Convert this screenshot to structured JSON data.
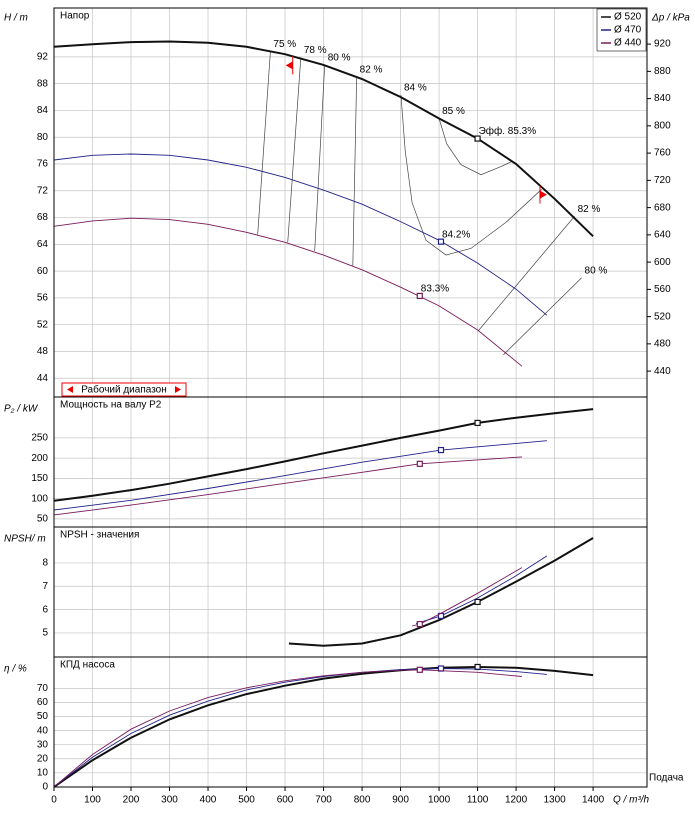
{
  "chart_data": [
    {
      "type": "line",
      "title": "Напор",
      "y_label": "H / m",
      "y2_label": "Δp / kPa",
      "grid": true,
      "xlim": [
        0,
        1540
      ],
      "ylim": [
        41.2,
        99.3
      ],
      "yticks": [
        44,
        48,
        52,
        56,
        60,
        64,
        68,
        72,
        76,
        80,
        84,
        88,
        92
      ],
      "y2lim": [
        402,
        973
      ],
      "y2ticks": [
        440,
        480,
        520,
        560,
        600,
        640,
        680,
        720,
        760,
        800,
        840,
        880,
        920
      ],
      "legend": "upper right",
      "series": [
        {
          "name": "Ø 520",
          "color": "#111111",
          "x": [
            0,
            100,
            200,
            300,
            400,
            500,
            600,
            700,
            800,
            900,
            1000,
            1100,
            1200,
            1300,
            1400
          ],
          "values": [
            93.5,
            93.9,
            94.2,
            94.3,
            94.1,
            93.5,
            92.4,
            90.8,
            88.7,
            86.0,
            82.8,
            79.8,
            76.0,
            70.8,
            65.2
          ],
          "point": {
            "x": 1100,
            "value": 79.8,
            "label": "Эфф. 85.3%"
          }
        },
        {
          "name": "Ø 470",
          "color": "#22228a",
          "x": [
            0,
            100,
            200,
            300,
            400,
            500,
            600,
            700,
            800,
            900,
            1000,
            1100,
            1200,
            1280
          ],
          "values": [
            76.6,
            77.3,
            77.5,
            77.3,
            76.6,
            75.5,
            74.0,
            72.1,
            70.0,
            67.4,
            64.6,
            61.2,
            57.3,
            53.4
          ],
          "point": {
            "x": 1005,
            "value": 64.4,
            "label": "84.2%"
          }
        },
        {
          "name": "Ø 440",
          "color": "#7a1a5c",
          "x": [
            0,
            100,
            200,
            300,
            400,
            500,
            600,
            700,
            800,
            900,
            1000,
            1100,
            1215
          ],
          "values": [
            66.7,
            67.5,
            67.9,
            67.7,
            67.0,
            65.8,
            64.3,
            62.4,
            60.2,
            57.6,
            54.8,
            51.2,
            45.8
          ],
          "point": {
            "x": 950,
            "value": 56.3,
            "label": "83.3%"
          }
        }
      ],
      "efficiency_lines": [
        {
          "label": "75 %",
          "x": [
            562,
            529
          ],
          "values": [
            92.8,
            65.5
          ]
        },
        {
          "label": "78 %",
          "x": [
            641,
            607
          ],
          "values": [
            91.9,
            64.3
          ]
        },
        {
          "label": "80 %",
          "x": [
            703,
            677
          ],
          "values": [
            90.8,
            63.0
          ]
        },
        {
          "label": "82 %",
          "x": [
            786,
            776
          ],
          "values": [
            89.0,
            60.8
          ]
        },
        {
          "label": "84 %",
          "x": [
            901,
            912,
            930,
            966,
            1018,
            1083,
            1174,
            1266
          ],
          "values": [
            86.3,
            78.0,
            70.2,
            64.6,
            62.4,
            63.4,
            67.3,
            72.2
          ]
        },
        {
          "label": "85 %",
          "x": [
            1000,
            1020,
            1057,
            1109,
            1160,
            1190
          ],
          "values": [
            82.8,
            79.0,
            75.9,
            74.4,
            75.6,
            76.4
          ]
        },
        {
          "label": "82 %",
          "x": [
            1352,
            1102
          ],
          "values": [
            68.2,
            51.1
          ]
        },
        {
          "label": "80 %",
          "x": [
            1370,
            1167
          ],
          "values": [
            59.0,
            47.5
          ]
        }
      ],
      "operating_range": {
        "label": "Рабочий диапазон",
        "x": [
          620,
          1262
        ]
      }
    },
    {
      "type": "line",
      "title": "Мощность на валу P2",
      "y_label": "P₂ / kW",
      "grid": true,
      "xlim": [
        0,
        1540
      ],
      "ylim": [
        30,
        351
      ],
      "yticks": [
        50,
        100,
        150,
        200,
        250
      ],
      "series": [
        {
          "name": "Ø 520",
          "color": "#111111",
          "x": [
            0,
            100,
            200,
            300,
            400,
            500,
            600,
            700,
            800,
            900,
            1000,
            1100,
            1200,
            1300,
            1400
          ],
          "values": [
            95,
            107,
            121,
            137,
            155,
            173,
            192,
            212,
            231,
            250,
            268,
            287,
            300,
            311,
            321
          ],
          "point": {
            "x": 1100,
            "value": 287
          }
        },
        {
          "name": "Ø 470",
          "color": "#22228a",
          "x": [
            0,
            200,
            400,
            600,
            800,
            1005,
            1280
          ],
          "values": [
            72,
            96,
            125,
            157,
            190,
            220,
            243
          ],
          "point": {
            "x": 1005,
            "value": 220
          }
        },
        {
          "name": "Ø 440",
          "color": "#7a1a5c",
          "x": [
            0,
            200,
            400,
            600,
            800,
            950,
            1215
          ],
          "values": [
            60,
            84,
            110,
            138,
            165,
            186,
            203
          ],
          "point": {
            "x": 950,
            "value": 186
          }
        }
      ]
    },
    {
      "type": "line",
      "title": "NPSH - значения",
      "y_label": "NPSH/ m",
      "grid": true,
      "xlim": [
        0,
        1540
      ],
      "ylim": [
        3.97,
        9.54
      ],
      "yticks": [
        5,
        6,
        7,
        8
      ],
      "series": [
        {
          "name": "Ø 520",
          "color": "#111111",
          "x": [
            610,
            700,
            800,
            900,
            1000,
            1100,
            1200,
            1300,
            1400
          ],
          "values": [
            4.55,
            4.45,
            4.55,
            4.9,
            5.55,
            6.33,
            7.2,
            8.1,
            9.07
          ],
          "point": {
            "x": 1100,
            "value": 6.33
          }
        },
        {
          "name": "Ø 470",
          "color": "#22228a",
          "x": [
            940,
            1005,
            1100,
            1200,
            1280
          ],
          "values": [
            5.4,
            5.73,
            6.5,
            7.45,
            8.3
          ],
          "point": {
            "x": 1005,
            "value": 5.73
          }
        },
        {
          "name": "Ø 440",
          "color": "#7a1a5c",
          "x": [
            930,
            950,
            1000,
            1100,
            1215
          ],
          "values": [
            5.3,
            5.38,
            5.8,
            6.7,
            7.8
          ],
          "point": {
            "x": 950,
            "value": 5.38
          }
        }
      ]
    },
    {
      "type": "line",
      "title": "КПД насоса",
      "y_label": "η / %",
      "x_label": "Q / m³/h",
      "x_title": "Подача",
      "grid": true,
      "xlim": [
        0,
        1540
      ],
      "ylim": [
        -0.1,
        92.4
      ],
      "yticks": [
        0,
        10,
        20,
        30,
        40,
        50,
        60,
        70
      ],
      "xticks": [
        0,
        100,
        200,
        300,
        400,
        500,
        600,
        700,
        800,
        900,
        1000,
        1100,
        1200,
        1300,
        1400
      ],
      "series": [
        {
          "name": "Ø 520",
          "color": "#111111",
          "x": [
            0,
            100,
            200,
            300,
            400,
            500,
            600,
            700,
            800,
            900,
            1000,
            1100,
            1200,
            1300,
            1400
          ],
          "values": [
            0,
            19,
            35,
            48,
            58,
            66,
            72,
            77,
            80.5,
            83,
            84.8,
            85.3,
            84.7,
            82.5,
            79.5
          ],
          "point": {
            "x": 1100,
            "value": 85.3
          }
        },
        {
          "name": "Ø 470",
          "color": "#22228a",
          "x": [
            0,
            100,
            200,
            300,
            400,
            500,
            600,
            700,
            800,
            900,
            1005,
            1100,
            1200,
            1280
          ],
          "values": [
            0,
            21,
            38,
            51,
            61,
            69,
            74.5,
            78.5,
            81.5,
            83.4,
            84.2,
            83.8,
            82,
            80
          ],
          "point": {
            "x": 1005,
            "value": 84.2
          }
        },
        {
          "name": "Ø 440",
          "color": "#7a1a5c",
          "x": [
            0,
            100,
            200,
            300,
            400,
            500,
            600,
            700,
            800,
            900,
            950,
            1100,
            1215
          ],
          "values": [
            0,
            23,
            41,
            54,
            63.5,
            70.5,
            75.5,
            79,
            81.5,
            83,
            83.3,
            81.5,
            78.5
          ],
          "point": {
            "x": 950,
            "value": 83.3
          }
        }
      ]
    }
  ]
}
